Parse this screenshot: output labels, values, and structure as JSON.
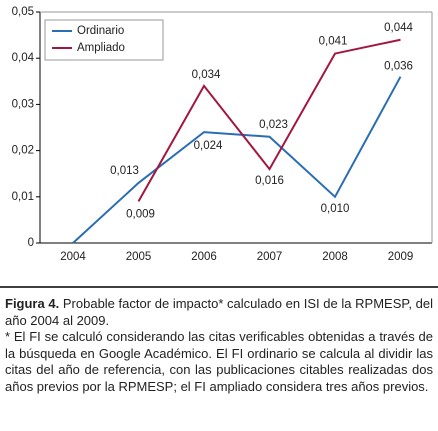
{
  "chart_data": {
    "type": "line",
    "categories": [
      "2004",
      "2005",
      "2006",
      "2007",
      "2008",
      "2009"
    ],
    "series": [
      {
        "name": "Ordinario",
        "color": "#2a6db5",
        "values": [
          0,
          0.013,
          0.024,
          0.023,
          0.01,
          0.036
        ],
        "value_labels": [
          null,
          "0,013",
          "0,024",
          "0,023",
          "0,010",
          "0,036"
        ]
      },
      {
        "name": "Ampliado",
        "color": "#a3173f",
        "values": [
          null,
          0.009,
          0.034,
          0.016,
          0.041,
          0.044
        ],
        "value_labels": [
          null,
          "0,009",
          "0,034",
          "0,016",
          "0,041",
          "0,044"
        ]
      }
    ],
    "ylim": [
      0,
      0.05
    ],
    "yticks": [
      0,
      {
        "value": 0.01,
        "label": "0,01"
      },
      {
        "value": 0.02,
        "label": "0,02"
      },
      {
        "value": 0.03,
        "label": "0,03"
      },
      {
        "value": 0.04,
        "label": "0,04"
      },
      {
        "value": 0.05,
        "label": "0,05"
      }
    ],
    "legend": "upper left"
  },
  "caption": {
    "label": "Figura 4.",
    "text": "Probable factor de impacto* calculado en ISI de la RPMESP, del año 2004 al 2009.",
    "note": "* El FI se calculó considerando las citas verificables obtenidas a través de la búsqueda en Google Académico. El FI ordinario se calcula al dividir las citas del año de referencia, con las publicaciones citables realizadas dos años previos por la RPMESP; el FI ampliado considera tres años previos."
  }
}
